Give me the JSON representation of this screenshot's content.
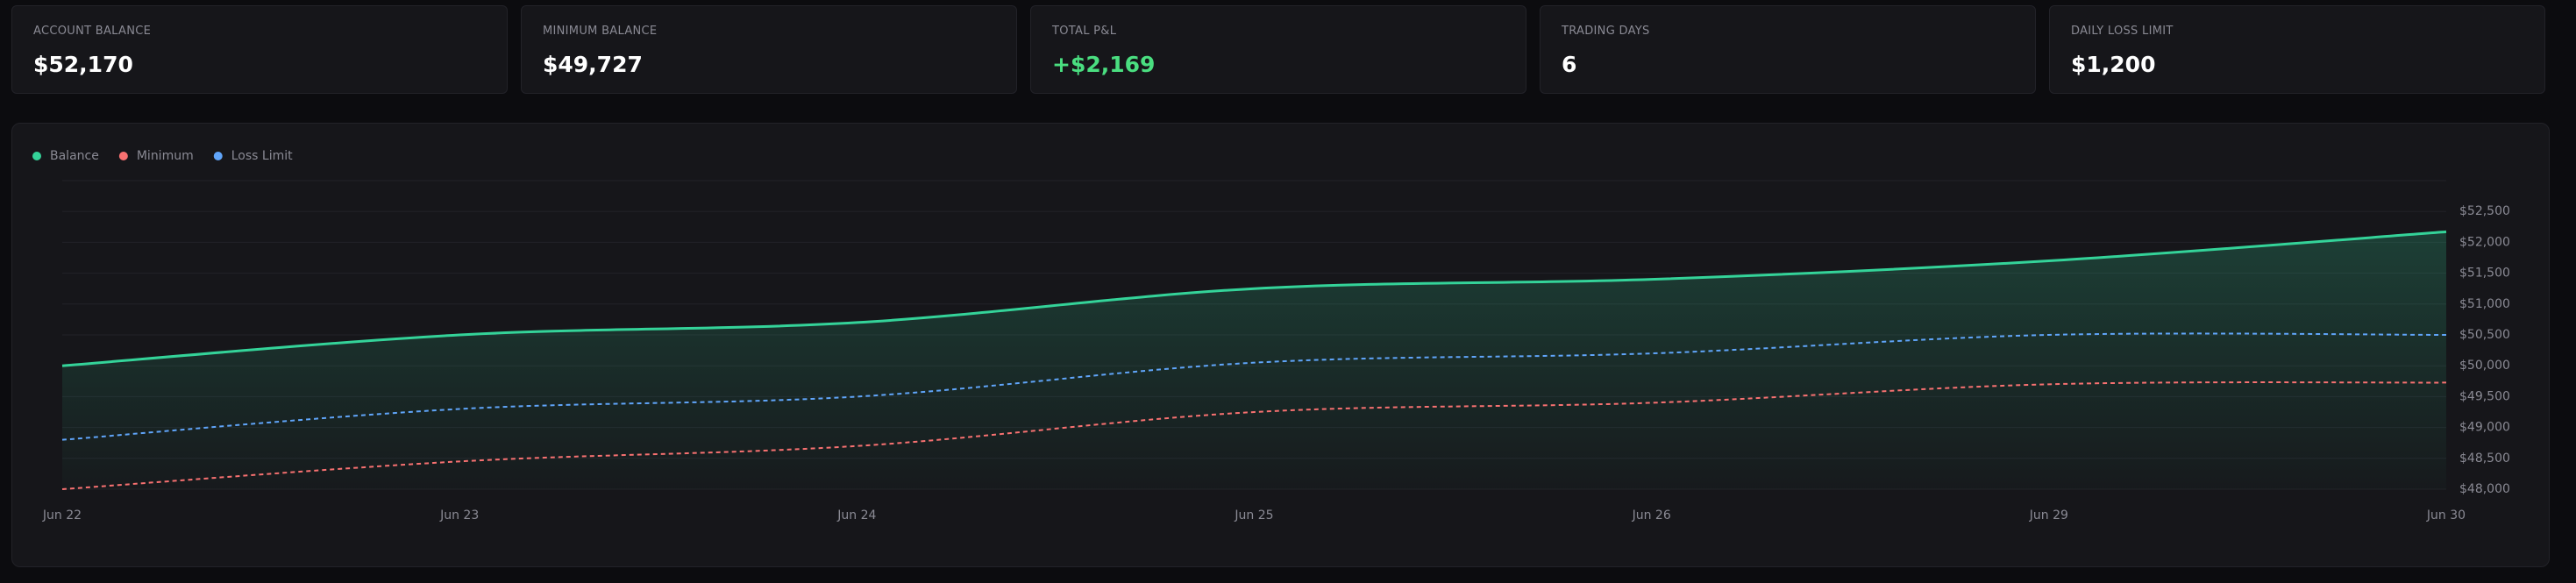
{
  "stats": [
    {
      "label": "ACCOUNT BALANCE",
      "value": "$52,170"
    },
    {
      "label": "MINIMUM BALANCE",
      "value": "$49,727"
    },
    {
      "label": "TOTAL P&L",
      "value": "+$2,169",
      "positive": true
    },
    {
      "label": "TRADING DAYS",
      "value": "6"
    },
    {
      "label": "DAILY LOSS LIMIT",
      "value": "$1,200"
    }
  ],
  "chart_data": {
    "type": "line",
    "categories": [
      "Jun 22",
      "Jun 23",
      "Jun 24",
      "Jun 25",
      "Jun 26",
      "Jun 29",
      "Jun 30"
    ],
    "series": [
      {
        "name": "Balance",
        "color": "#34d399",
        "values": [
          50000,
          50500,
          50700,
          51250,
          51400,
          51700,
          52170
        ],
        "fill": true
      },
      {
        "name": "Minimum",
        "color": "#f87171",
        "values": [
          48000,
          48450,
          48700,
          49250,
          49400,
          49700,
          49727
        ],
        "dashed": true
      },
      {
        "name": "Loss Limit",
        "color": "#60a5fa",
        "values": [
          48800,
          49300,
          49500,
          50050,
          50200,
          50500,
          50500
        ],
        "dashed": true
      }
    ],
    "ylim": [
      48000,
      53000
    ],
    "yticks": [
      {
        "value": 48000,
        "label": "$48,000"
      },
      {
        "value": 48500,
        "label": "$48,500"
      },
      {
        "value": 49000,
        "label": "$49,000"
      },
      {
        "value": 49500,
        "label": "$49,500"
      },
      {
        "value": 50000,
        "label": "$50,000"
      },
      {
        "value": 50500,
        "label": "$50,500"
      },
      {
        "value": 51000,
        "label": "$51,000"
      },
      {
        "value": 51500,
        "label": "$51,500"
      },
      {
        "value": 52000,
        "label": "$52,000"
      },
      {
        "value": 52500,
        "label": "$52,500"
      }
    ],
    "grid": true
  }
}
